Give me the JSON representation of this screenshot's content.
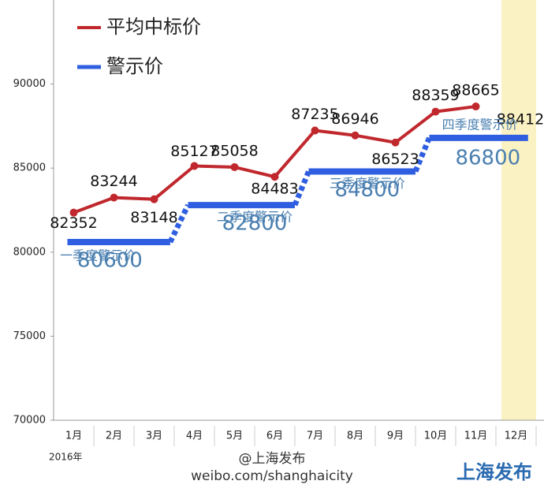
{
  "chart_data": {
    "type": "line",
    "legend": [
      "平均中标价",
      "警示价"
    ],
    "categories": [
      "1月",
      "2月",
      "3月",
      "4月",
      "5月",
      "6月",
      "7月",
      "8月",
      "9月",
      "10月",
      "11月",
      "12月"
    ],
    "x_note": "2016年",
    "series": [
      {
        "name": "平均中标价",
        "color": "#c0282d",
        "values": [
          82352,
          83244,
          83148,
          85127,
          85058,
          84483,
          87235,
          86946,
          86523,
          88359,
          88665,
          null
        ]
      }
    ],
    "warning_prices": {
      "name": "警示价",
      "color": "#2f5fe0",
      "label_color": "#4a7fb0",
      "labels": [
        "一季度警示价",
        "二季度警示价",
        "三季度警示价",
        "四季度警示价"
      ],
      "values": [
        80600,
        82800,
        84800,
        86800
      ]
    },
    "annotation": "88412",
    "ylim": [
      70000,
      95000
    ],
    "yticks": [
      70000,
      75000,
      80000,
      85000,
      90000
    ],
    "footer": {
      "account": "@上海发布",
      "url": "weibo.com/shanghaicity",
      "logo": "上海发布"
    }
  }
}
